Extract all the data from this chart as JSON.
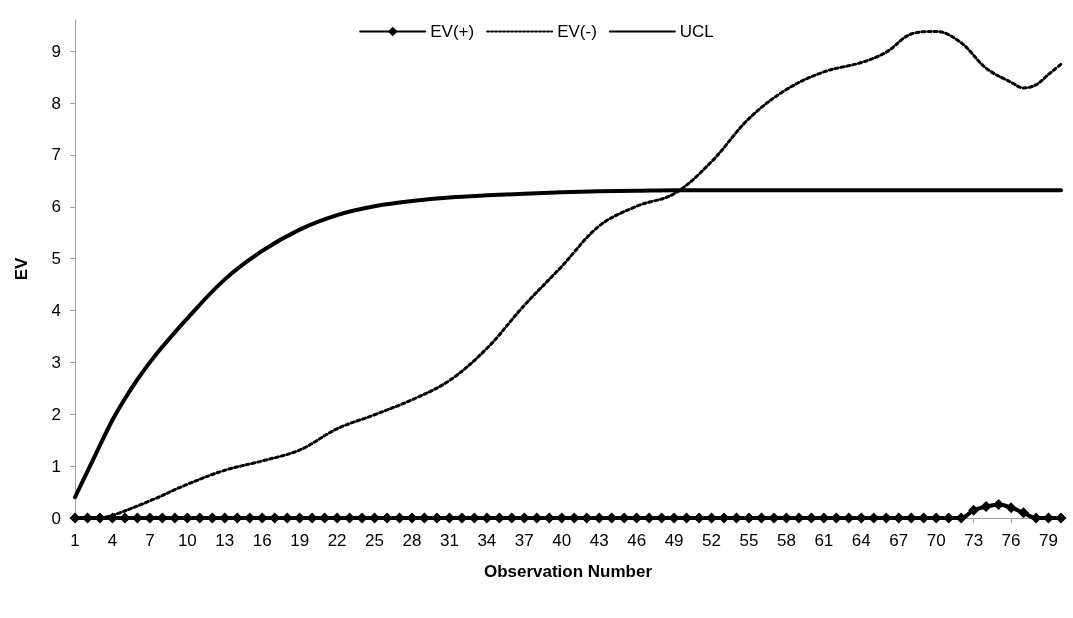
{
  "chart_data": {
    "type": "line",
    "xlabel": "Observation Number",
    "ylabel": "EV",
    "xlim": [
      1,
      80
    ],
    "xticks": [
      1,
      4,
      7,
      10,
      13,
      16,
      19,
      22,
      25,
      28,
      31,
      34,
      37,
      40,
      43,
      46,
      49,
      52,
      55,
      58,
      61,
      64,
      67,
      70,
      73,
      76,
      79
    ],
    "ylim": [
      0,
      9.6
    ],
    "yticks": [
      0,
      1,
      2,
      3,
      4,
      5,
      6,
      7,
      8,
      9
    ],
    "grid": false,
    "legend": "top",
    "marker": "none",
    "line_style": "solid",
    "series": [
      {
        "name": "EV(+)",
        "color": "#000000",
        "marker": "diamond",
        "x": [
          1,
          2,
          3,
          4,
          5,
          6,
          7,
          8,
          9,
          10,
          11,
          12,
          13,
          14,
          15,
          16,
          17,
          18,
          19,
          20,
          21,
          22,
          23,
          24,
          25,
          26,
          27,
          28,
          29,
          30,
          31,
          32,
          33,
          34,
          35,
          36,
          37,
          38,
          39,
          40,
          41,
          42,
          43,
          44,
          45,
          46,
          47,
          48,
          49,
          50,
          51,
          52,
          53,
          54,
          55,
          56,
          57,
          58,
          59,
          60,
          61,
          62,
          63,
          64,
          65,
          66,
          67,
          68,
          69,
          70,
          71,
          72,
          73,
          74,
          75,
          76,
          77,
          78,
          79,
          80
        ],
        "values": [
          0,
          0,
          0,
          0,
          0,
          0,
          0,
          0,
          0,
          0,
          0,
          0,
          0,
          0,
          0,
          0,
          0,
          0,
          0,
          0,
          0,
          0,
          0,
          0,
          0,
          0,
          0,
          0,
          0,
          0,
          0,
          0,
          0,
          0,
          0,
          0,
          0,
          0,
          0,
          0,
          0,
          0,
          0,
          0,
          0,
          0,
          0,
          0,
          0,
          0,
          0,
          0,
          0,
          0,
          0,
          0,
          0,
          0,
          0,
          0,
          0,
          0,
          0,
          0,
          0,
          0,
          0,
          0,
          0,
          0,
          0,
          0,
          0.15,
          0.22,
          0.26,
          0.2,
          0.1,
          0,
          0,
          0
        ]
      },
      {
        "name": "EV(-)",
        "color": "#000000",
        "line_style": "dotted",
        "x": [
          3,
          4,
          7,
          10,
          13,
          16,
          19,
          22,
          25,
          28,
          31,
          34,
          37,
          40,
          43,
          46,
          49,
          52,
          55,
          58,
          61,
          64,
          66,
          68,
          70,
          72,
          74,
          76,
          77,
          78,
          79,
          80
        ],
        "values": [
          0,
          0.05,
          0.33,
          0.65,
          0.92,
          1.1,
          1.31,
          1.72,
          1.99,
          2.28,
          2.65,
          3.27,
          4.1,
          4.85,
          5.63,
          6.01,
          6.25,
          6.87,
          7.7,
          8.26,
          8.6,
          8.78,
          8.98,
          9.33,
          9.38,
          9.16,
          8.67,
          8.4,
          8.29,
          8.35,
          8.55,
          8.75
        ]
      },
      {
        "name": "UCL",
        "color": "#000000",
        "x": [
          1,
          2,
          3,
          4,
          5,
          6,
          7,
          8,
          10,
          13,
          16,
          19,
          22,
          25,
          28,
          31,
          34,
          37,
          40,
          43,
          46,
          49,
          55,
          65,
          80
        ],
        "values": [
          0.4,
          0.9,
          1.4,
          1.89,
          2.3,
          2.67,
          3.0,
          3.3,
          3.85,
          4.6,
          5.15,
          5.56,
          5.84,
          6.01,
          6.11,
          6.18,
          6.22,
          6.25,
          6.28,
          6.3,
          6.31,
          6.32,
          6.32,
          6.32,
          6.32
        ]
      }
    ]
  }
}
